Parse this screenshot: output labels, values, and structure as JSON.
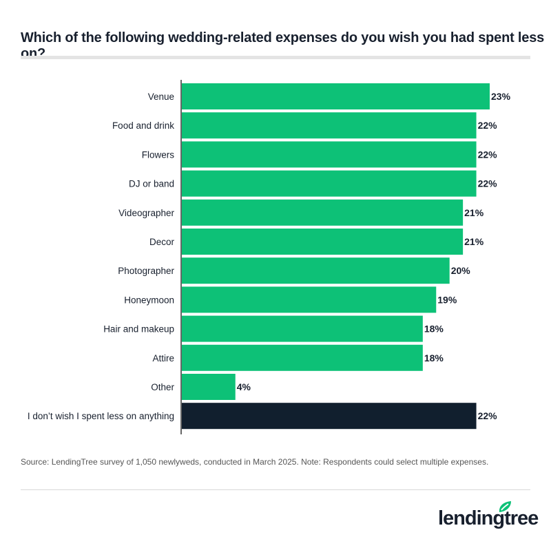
{
  "title": "Which of the following wedding-related expenses do you wish you had spent less on?",
  "source": "Source: LendingTree survey of 1,050 newlyweds, conducted in March 2025. Note: Respondents could select multiple expenses.",
  "logo_text": "lendingtree",
  "colors": {
    "bar": "#0dc177",
    "highlight": "#111f2e",
    "text": "#18202e"
  },
  "chart_data": {
    "type": "bar",
    "orientation": "horizontal",
    "title": "Which of the following wedding-related expenses do you wish you had spent less on?",
    "categories": [
      "Venue",
      "Food and drink",
      "Flowers",
      "DJ or band",
      "Videographer",
      "Decor",
      "Photographer",
      "Honeymoon",
      "Hair and makeup",
      "Attire",
      "Other",
      "I don’t wish I spent less on anything"
    ],
    "values": [
      23,
      22,
      22,
      22,
      21,
      21,
      20,
      19,
      18,
      18,
      4,
      22
    ],
    "labels": [
      "23%",
      "22%",
      "22%",
      "22%",
      "21%",
      "21%",
      "20%",
      "19%",
      "18%",
      "18%",
      "4%",
      "22%"
    ],
    "highlighted": [
      "I don’t wish I spent less on anything"
    ],
    "xlim": [
      0,
      23
    ],
    "grid": false,
    "legend": "none"
  }
}
